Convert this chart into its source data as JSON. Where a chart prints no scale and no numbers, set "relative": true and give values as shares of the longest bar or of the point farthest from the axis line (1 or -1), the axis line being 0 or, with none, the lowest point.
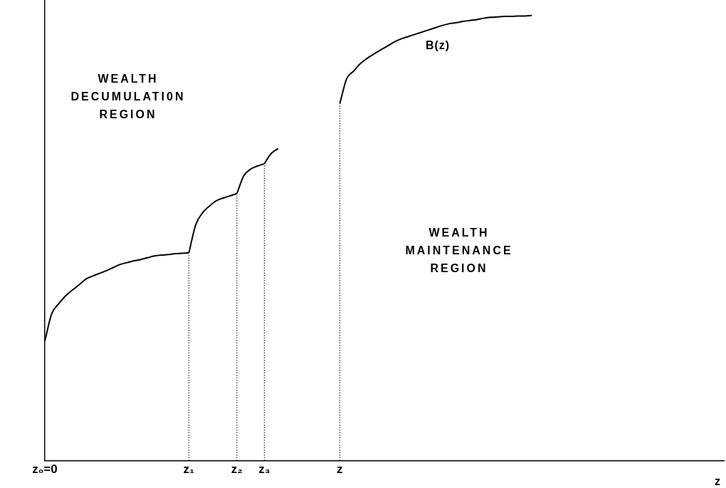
{
  "chart_data": {
    "type": "line",
    "relative": true,
    "xlabel": "z",
    "categories": [
      "z₀=0",
      null,
      null,
      null,
      null,
      null,
      null,
      null,
      null,
      null,
      null,
      null,
      null,
      null,
      null,
      null,
      null,
      null,
      null,
      null,
      null,
      "z₁",
      null,
      null,
      null,
      null,
      null,
      null,
      "z₂",
      null,
      null,
      null,
      "z₃",
      null,
      null,
      null,
      null,
      null,
      null,
      null,
      null,
      null,
      null,
      "z",
      null,
      null,
      null,
      null,
      null,
      null,
      null,
      null,
      null,
      null,
      null,
      null,
      null,
      null,
      null,
      null,
      null,
      null,
      null,
      null,
      null,
      null,
      null,
      null,
      null,
      null,
      null,
      null,
      null,
      null,
      null,
      null,
      null,
      null,
      null,
      null,
      null,
      null,
      null,
      null,
      null,
      null,
      null,
      null,
      null,
      null,
      null,
      null,
      null,
      null,
      null,
      null,
      null,
      null,
      null,
      null
    ],
    "tick_labels": "x",
    "grid": false,
    "legend": false,
    "marker": "none",
    "line_style": "solid",
    "series": [
      {
        "color": "#000000",
        "values": [
          0.269,
          0.33,
          0.352,
          0.37,
          0.383,
          0.395,
          0.408,
          0.415,
          0.421,
          0.427,
          0.434,
          0.441,
          0.445,
          0.449,
          0.452,
          0.456,
          0.46,
          0.462,
          0.463,
          0.465,
          0.466,
          0.467,
          null,
          null,
          null,
          null,
          null,
          null,
          null,
          null,
          null,
          null,
          null,
          null,
          null,
          null,
          null,
          null,
          null,
          null,
          null,
          null,
          null,
          null,
          null,
          null,
          null,
          null,
          null,
          null,
          null,
          null,
          null,
          null,
          null,
          null,
          null,
          null,
          null,
          null,
          null,
          null,
          null,
          null,
          null,
          null,
          null,
          null,
          null,
          null,
          null,
          null,
          null,
          null,
          null,
          null,
          null,
          null,
          null,
          null,
          null,
          null,
          null,
          null,
          null,
          null,
          null,
          null,
          null,
          null,
          null,
          null,
          null,
          null,
          null,
          null,
          null,
          null,
          null,
          null
        ]
      },
      {
        "color": "#000000",
        "values": [
          null,
          null,
          null,
          null,
          null,
          null,
          null,
          null,
          null,
          null,
          null,
          null,
          null,
          null,
          null,
          null,
          null,
          null,
          null,
          null,
          null,
          0.467,
          0.53,
          0.557,
          0.572,
          0.584,
          0.59,
          0.595,
          0.6,
          null,
          null,
          null,
          null,
          null,
          null,
          null,
          null,
          null,
          null,
          null,
          null,
          null,
          null,
          null,
          null,
          null,
          null,
          null,
          null,
          null,
          null,
          null,
          null,
          null,
          null,
          null,
          null,
          null,
          null,
          null,
          null,
          null,
          null,
          null,
          null,
          null,
          null,
          null,
          null,
          null,
          null,
          null,
          null,
          null,
          null,
          null,
          null,
          null,
          null,
          null,
          null,
          null,
          null,
          null,
          null,
          null,
          null,
          null,
          null,
          null,
          null,
          null,
          null,
          null,
          null,
          null,
          null,
          null,
          null,
          null
        ]
      },
      {
        "color": "#000000",
        "values": [
          null,
          null,
          null,
          null,
          null,
          null,
          null,
          null,
          null,
          null,
          null,
          null,
          null,
          null,
          null,
          null,
          null,
          null,
          null,
          null,
          null,
          null,
          null,
          null,
          null,
          null,
          null,
          null,
          0.6,
          0.64,
          0.655,
          0.662,
          0.667,
          null,
          null,
          null,
          null,
          null,
          null,
          null,
          null,
          null,
          null,
          null,
          null,
          null,
          null,
          null,
          null,
          null,
          null,
          null,
          null,
          null,
          null,
          null,
          null,
          null,
          null,
          null,
          null,
          null,
          null,
          null,
          null,
          null,
          null,
          null,
          null,
          null,
          null,
          null,
          null,
          null,
          null,
          null,
          null,
          null,
          null,
          null,
          null,
          null,
          null,
          null,
          null,
          null,
          null,
          null,
          null,
          null,
          null,
          null,
          null,
          null,
          null,
          null,
          null,
          null,
          null,
          null
        ]
      },
      {
        "color": "#000000",
        "values": [
          null,
          null,
          null,
          null,
          null,
          null,
          null,
          null,
          null,
          null,
          null,
          null,
          null,
          null,
          null,
          null,
          null,
          null,
          null,
          null,
          null,
          null,
          null,
          null,
          null,
          null,
          null,
          null,
          null,
          null,
          null,
          null,
          0.667,
          0.69,
          0.701,
          null,
          null,
          null,
          null,
          null,
          null,
          null,
          null,
          null,
          null,
          null,
          null,
          null,
          null,
          null,
          null,
          null,
          null,
          null,
          null,
          null,
          null,
          null,
          null,
          null,
          null,
          null,
          null,
          null,
          null,
          null,
          null,
          null,
          null,
          null,
          null,
          null,
          null,
          null,
          null,
          null,
          null,
          null,
          null,
          null,
          null,
          null,
          null,
          null,
          null,
          null,
          null,
          null,
          null,
          null,
          null,
          null,
          null,
          null,
          null,
          null,
          null,
          null,
          null,
          null
        ]
      },
      {
        "color": "#000000",
        "values": [
          null,
          null,
          null,
          null,
          null,
          null,
          null,
          null,
          null,
          null,
          null,
          null,
          null,
          null,
          null,
          null,
          null,
          null,
          null,
          null,
          null,
          null,
          null,
          null,
          null,
          null,
          null,
          null,
          null,
          null,
          null,
          null,
          null,
          null,
          null,
          null,
          null,
          null,
          null,
          null,
          null,
          null,
          null,
          0.802,
          0.858,
          0.875,
          0.892,
          0.904,
          0.914,
          0.923,
          0.932,
          0.941,
          0.948,
          0.953,
          0.958,
          0.963,
          0.968,
          0.973,
          0.978,
          0.982,
          0.984,
          0.987,
          0.989,
          0.991,
          0.994,
          0.996,
          0.997,
          0.998,
          0.998,
          0.999,
          0.999,
          1,
          null,
          null,
          null,
          null,
          null,
          null,
          null,
          null,
          null,
          null,
          null,
          null,
          null,
          null,
          null,
          null,
          null,
          null,
          null,
          null,
          null,
          null,
          null,
          null,
          null,
          null,
          null,
          null
        ]
      }
    ],
    "ref_lines": [
      {
        "axis": "x",
        "value": "z₁",
        "color": "#000000",
        "line_style": "dotted"
      },
      {
        "axis": "x",
        "value": "z₂",
        "color": "#000000",
        "line_style": "dotted"
      },
      {
        "axis": "x",
        "value": "z₃",
        "color": "#000000",
        "line_style": "dotted"
      },
      {
        "axis": "x",
        "value": "z",
        "color": "#000000",
        "line_style": "dotted"
      }
    ],
    "annotations": [
      "WEALTH DECUMULATI0N REGION",
      "WEALTH MAINTENANCE REGION",
      "B(z)"
    ]
  }
}
